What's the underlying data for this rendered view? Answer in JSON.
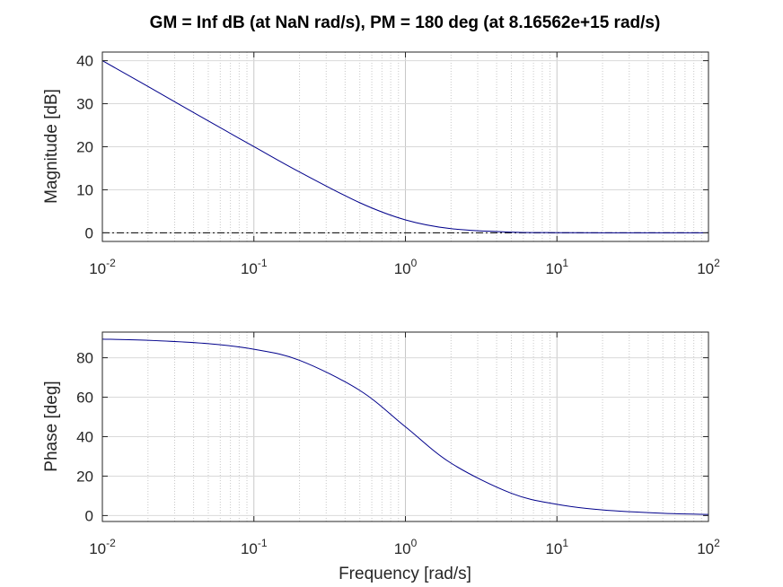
{
  "chart_data": [
    {
      "type": "line",
      "title": "GM = Inf dB (at NaN rad/s),   PM = 180 deg (at 8.16562e+15 rad/s)",
      "xlabel": "",
      "ylabel": "Magnitude [dB]",
      "xscale": "log",
      "xlim": [
        0.01,
        100
      ],
      "ylim": [
        -2,
        42
      ],
      "xticks": [
        {
          "base": "10",
          "exp": "-2",
          "value": 0.01
        },
        {
          "base": "10",
          "exp": "-1",
          "value": 0.1
        },
        {
          "base": "10",
          "exp": "0",
          "value": 1
        },
        {
          "base": "10",
          "exp": "1",
          "value": 10
        },
        {
          "base": "10",
          "exp": "2",
          "value": 100
        }
      ],
      "yticks": [
        "0",
        "10",
        "20",
        "30",
        "40"
      ],
      "grid": true,
      "reference_line": {
        "y": 0,
        "style": "dash-dot",
        "color": "#000000"
      },
      "series": [
        {
          "color": "#00008b",
          "x": [
            0.01,
            0.02,
            0.05,
            0.1,
            0.2,
            0.5,
            1,
            2,
            5,
            10,
            20,
            50,
            100
          ],
          "y": [
            40.0,
            34.0,
            26.0,
            20.04,
            14.15,
            6.99,
            3.01,
            0.97,
            0.17,
            0.04,
            0.01,
            0.0,
            0.0
          ]
        }
      ]
    },
    {
      "type": "line",
      "title": "",
      "xlabel": "Frequency [rad/s]",
      "ylabel": "Phase [deg]",
      "xscale": "log",
      "xlim": [
        0.01,
        100
      ],
      "ylim": [
        -3,
        93
      ],
      "xticks": [
        {
          "base": "10",
          "exp": "-2",
          "value": 0.01
        },
        {
          "base": "10",
          "exp": "-1",
          "value": 0.1
        },
        {
          "base": "10",
          "exp": "0",
          "value": 1
        },
        {
          "base": "10",
          "exp": "1",
          "value": 10
        },
        {
          "base": "10",
          "exp": "2",
          "value": 100
        }
      ],
      "yticks": [
        "0",
        "20",
        "40",
        "60",
        "80"
      ],
      "grid": true,
      "series": [
        {
          "color": "#00008b",
          "x": [
            0.01,
            0.02,
            0.05,
            0.1,
            0.2,
            0.5,
            1,
            2,
            5,
            10,
            20,
            50,
            100
          ],
          "y": [
            89.43,
            88.85,
            87.14,
            84.29,
            78.69,
            63.43,
            45.0,
            26.57,
            11.31,
            5.71,
            2.86,
            1.15,
            0.57
          ]
        }
      ]
    }
  ]
}
